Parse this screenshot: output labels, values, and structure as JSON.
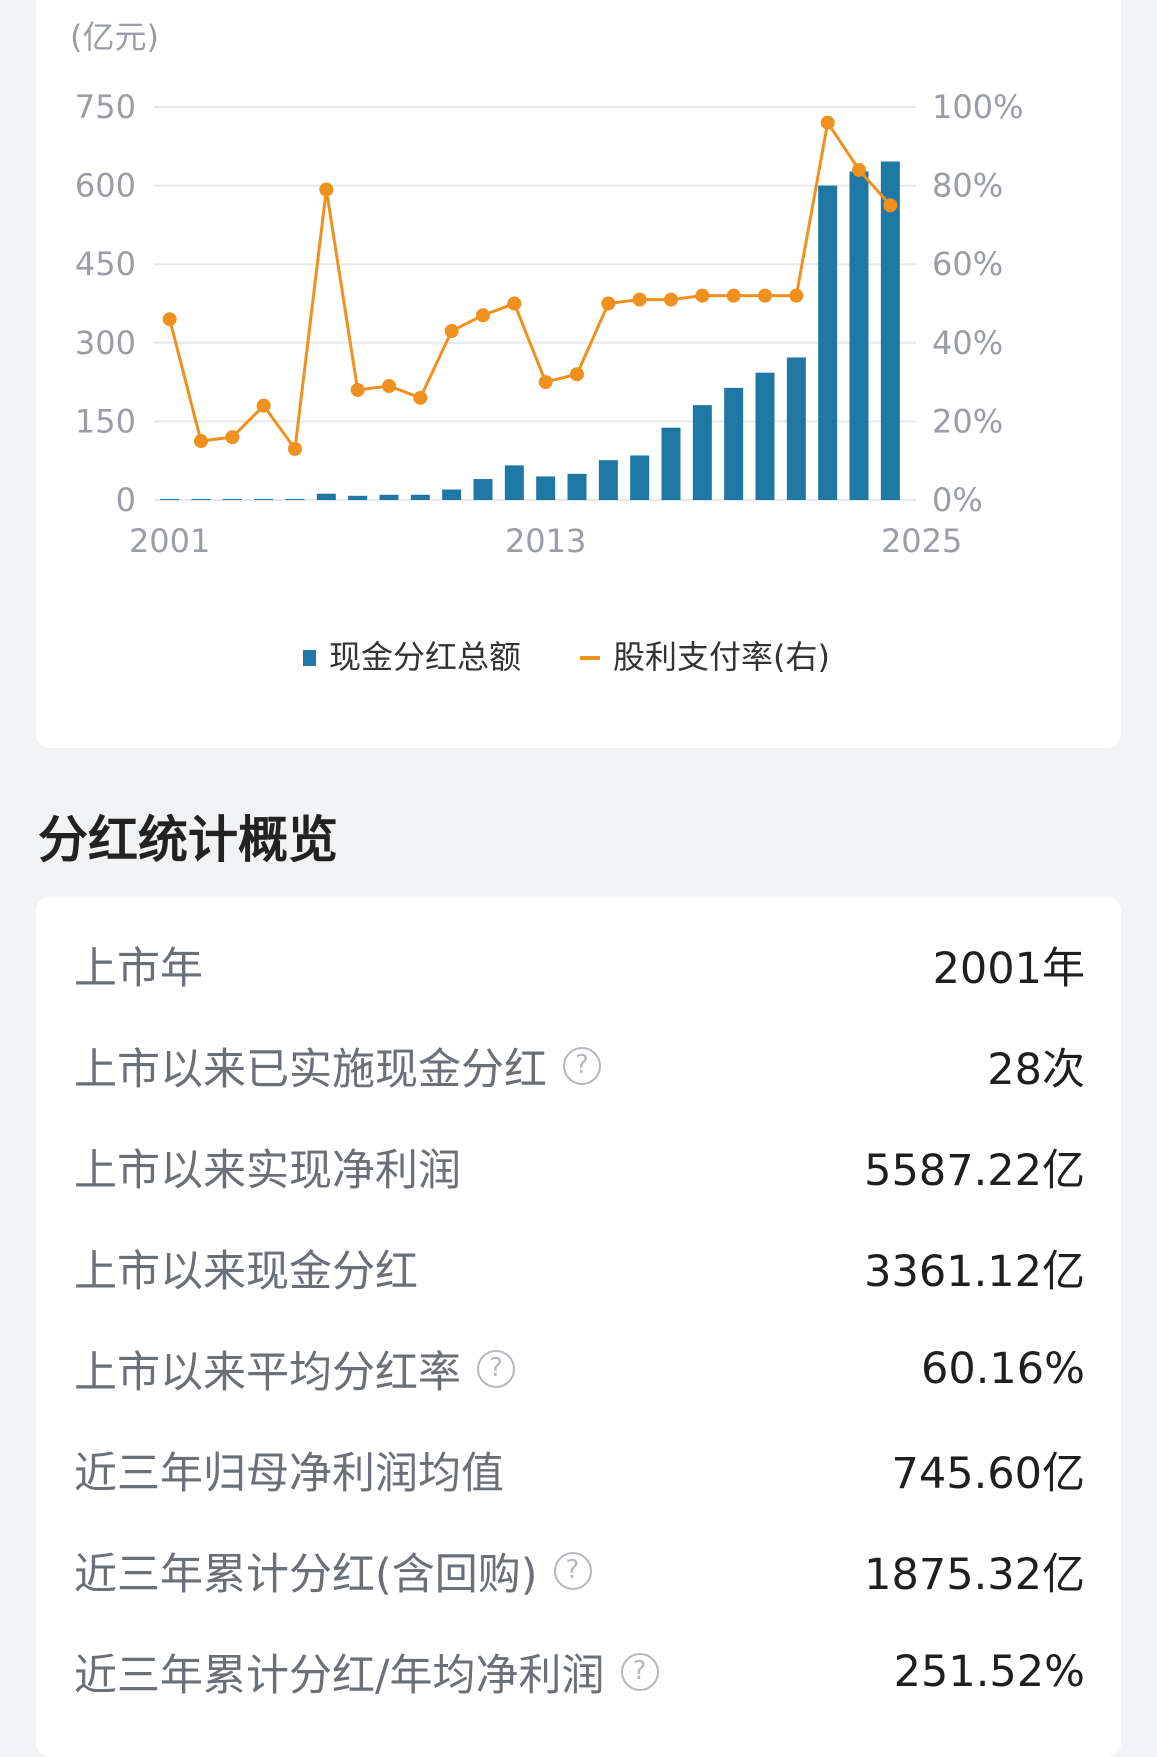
{
  "chart": {
    "unit_label": "(亿元)",
    "legend": {
      "bars": "现金分红总额",
      "line": "股利支付率(右)"
    },
    "colors": {
      "bar": "#1f77a4",
      "line": "#f0901e",
      "grid": "#e6e8eb",
      "axis_text": "#9a9ea4"
    }
  },
  "chart_data": {
    "type": "bar+line",
    "x_tick_labels": [
      "2001",
      "2013",
      "2025"
    ],
    "y_left": {
      "min": 0,
      "max": 750,
      "ticks": [
        "0",
        "150",
        "300",
        "450",
        "600",
        "750"
      ]
    },
    "y_right": {
      "min": 0,
      "max": 100,
      "ticks": [
        "0%",
        "20%",
        "40%",
        "60%",
        "80%",
        "100%"
      ]
    },
    "x": [
      2001,
      2002,
      2003,
      2004,
      2005,
      2006,
      2007,
      2008,
      2009,
      2010,
      2011,
      2012,
      2013,
      2014,
      2015,
      2016,
      2017,
      2018,
      2019,
      2020,
      2021,
      2022,
      2023,
      2024
    ],
    "series": [
      {
        "name": "现金分红总额",
        "axis": "left",
        "type": "bar",
        "values": [
          2,
          2,
          2,
          2,
          2,
          12,
          8,
          10,
          10,
          20,
          40,
          66,
          45,
          50,
          76,
          85,
          138,
          181,
          214,
          243,
          272,
          600,
          627,
          646
        ]
      },
      {
        "name": "股利支付率(右)",
        "axis": "right",
        "type": "line",
        "values": [
          46,
          15,
          16,
          24,
          13,
          79,
          28,
          29,
          26,
          43,
          47,
          50,
          30,
          32,
          50,
          51,
          51,
          52,
          52,
          52,
          52,
          96,
          84,
          75
        ]
      }
    ],
    "grid": true,
    "legend_position": "bottom"
  },
  "section_title": "分红统计概览",
  "stats": [
    {
      "label": "上市年",
      "value": "2001年",
      "help": false
    },
    {
      "label": "上市以来已实施现金分红",
      "value": "28次",
      "help": true
    },
    {
      "label": "上市以来实现净利润",
      "value": "5587.22亿",
      "help": false
    },
    {
      "label": "上市以来现金分红",
      "value": "3361.12亿",
      "help": false
    },
    {
      "label": "上市以来平均分红率",
      "value": "60.16%",
      "help": true
    },
    {
      "label": "近三年归母净利润均值",
      "value": "745.60亿",
      "help": false
    },
    {
      "label": "近三年累计分红(含回购)",
      "value": "1875.32亿",
      "help": true
    },
    {
      "label": "近三年累计分红/年均净利润",
      "value": "251.52%",
      "help": true
    }
  ],
  "help_icon": "question-circle-icon",
  "help_glyph": "?"
}
